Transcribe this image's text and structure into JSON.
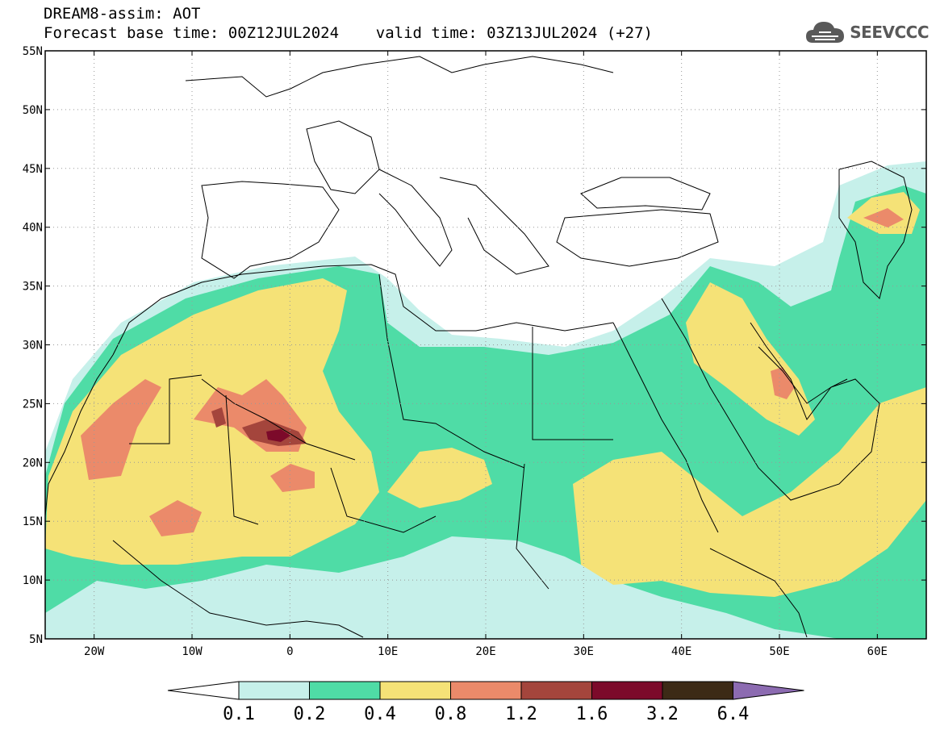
{
  "title": {
    "line1": "DREAM8-assim: AOT",
    "line2": "Forecast base time: 00Z12JUL2024    valid time: 03Z13JUL2024 (+27)"
  },
  "logo": {
    "text": "SEEVCCC",
    "icon": "cloud-logo-icon",
    "color": "#595959"
  },
  "map": {
    "lon_range": [
      -25,
      65
    ],
    "lat_range": [
      5,
      55
    ],
    "lon_ticks": [
      {
        "value": -20,
        "label": "20W"
      },
      {
        "value": -10,
        "label": "10W"
      },
      {
        "value": 0,
        "label": "0"
      },
      {
        "value": 10,
        "label": "10E"
      },
      {
        "value": 20,
        "label": "20E"
      },
      {
        "value": 30,
        "label": "30E"
      },
      {
        "value": 40,
        "label": "40E"
      },
      {
        "value": 50,
        "label": "50E"
      },
      {
        "value": 60,
        "label": "60E"
      }
    ],
    "lat_ticks": [
      {
        "value": 5,
        "label": "5N"
      },
      {
        "value": 10,
        "label": "10N"
      },
      {
        "value": 15,
        "label": "15N"
      },
      {
        "value": 20,
        "label": "20N"
      },
      {
        "value": 25,
        "label": "25N"
      },
      {
        "value": 30,
        "label": "30N"
      },
      {
        "value": 35,
        "label": "35N"
      },
      {
        "value": 40,
        "label": "40N"
      },
      {
        "value": 45,
        "label": "45N"
      },
      {
        "value": 50,
        "label": "50N"
      },
      {
        "value": 55,
        "label": "55N"
      }
    ],
    "grid": "dotted"
  },
  "colorbar": {
    "levels": [
      "0.1",
      "0.2",
      "0.4",
      "0.8",
      "1.2",
      "1.6",
      "3.2",
      "6.4"
    ],
    "colors": [
      "#ffffff",
      "#c6f0ea",
      "#4fdca6",
      "#f5e277",
      "#eb8a6a",
      "#a4453c",
      "#7c0a2a",
      "#3c2a16",
      "#8c6bb1"
    ]
  }
}
